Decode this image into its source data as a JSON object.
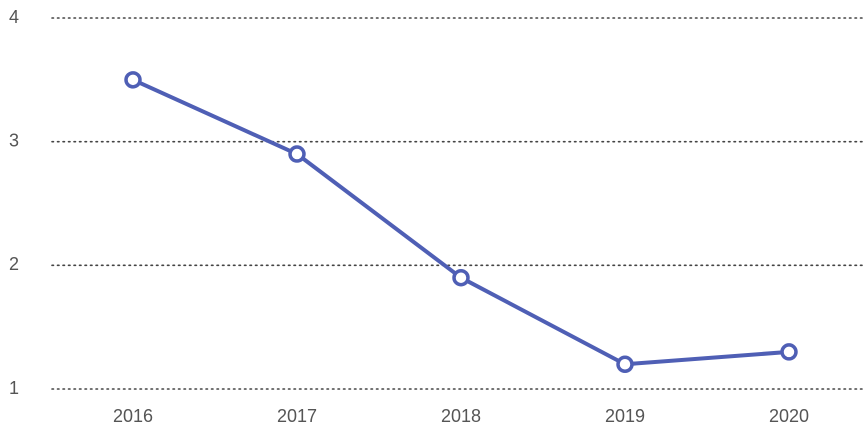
{
  "chart_data": {
    "type": "line",
    "categories": [
      "2016",
      "2017",
      "2018",
      "2019",
      "2020"
    ],
    "series": [
      {
        "name": null,
        "color": "#4f5fb5",
        "values": [
          3.5,
          2.9,
          1.9,
          1.2,
          1.3
        ]
      }
    ],
    "ylim": [
      1,
      4
    ],
    "yticks": [
      1,
      2,
      3,
      4
    ],
    "grid": true
  }
}
